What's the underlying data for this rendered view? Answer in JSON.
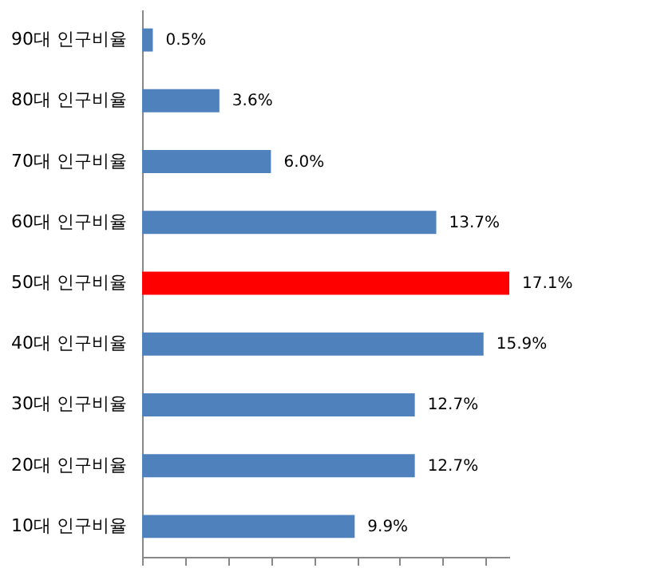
{
  "chart_data": {
    "type": "bar",
    "orientation": "horizontal",
    "categories": [
      "90대 인구비율",
      "80대 인구비율",
      "70대 인구비율",
      "60대 인구비율",
      "50대 인구비율",
      "40대 인구비율",
      "30대 인구비율",
      "20대 인구비율",
      "10대 인구비율"
    ],
    "values": [
      0.5,
      3.6,
      6.0,
      13.7,
      17.1,
      15.9,
      12.7,
      12.7,
      9.9
    ],
    "colors": [
      "#4f81bd",
      "#4f81bd",
      "#4f81bd",
      "#4f81bd",
      "#ff0000",
      "#4f81bd",
      "#4f81bd",
      "#4f81bd",
      "#4f81bd"
    ],
    "value_labels": [
      "0.5%",
      "3.6%",
      "6.0%",
      "13.7%",
      "17.1%",
      "15.9%",
      "12.7%",
      "12.7%",
      "9.9%"
    ],
    "tick_labels": "y"
  }
}
